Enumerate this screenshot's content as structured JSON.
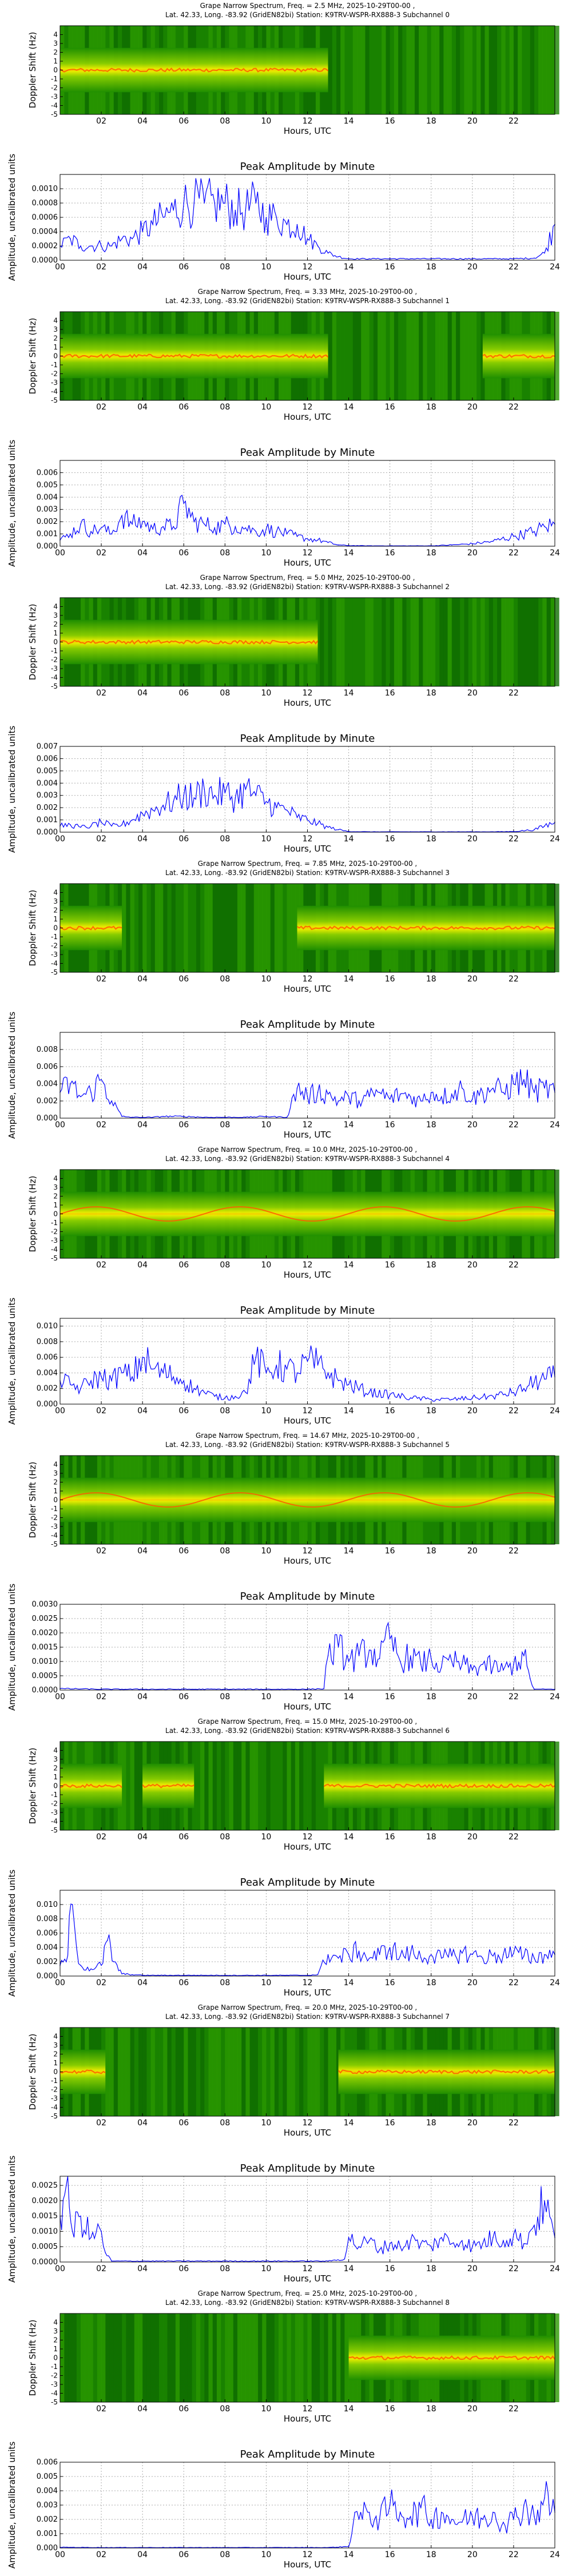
{
  "page": {
    "spectrogram_xlabel": "Hours, UTC",
    "spectrogram_ylabel": "Doppler Shift (Hz)",
    "amplitude_title": "Peak Amplitude by Minute",
    "amplitude_xlabel": "Hours, UTC",
    "amplitude_ylabel": "Amplitude, uncalibrated units",
    "spectrogram_xticks": [
      "02",
      "04",
      "06",
      "08",
      "10",
      "12",
      "14",
      "16",
      "18",
      "20",
      "22"
    ],
    "spectrogram_yticks": [
      "4",
      "3",
      "2",
      "1",
      "0",
      "-1",
      "-2",
      "-3",
      "-4",
      "-5"
    ],
    "amplitude_xticks": [
      "00",
      "02",
      "04",
      "06",
      "08",
      "10",
      "12",
      "14",
      "16",
      "18",
      "20",
      "22",
      "24"
    ]
  },
  "chart_data": [
    {
      "type": "heatmap",
      "title_line1": "Grape Narrow Spectrum, Freq. = 2.5 MHz, 2025-10-29T00-00 ,",
      "title_line2": "Lat. 42.33, Long. -83.92 (GridEN82bi) Station: K9TRV-WSPR-RX888-3 Subchannel 0",
      "xlabel": "Hours, UTC",
      "ylabel": "Doppler Shift (Hz)",
      "xlim": [
        0,
        24
      ],
      "ylim": [
        -5,
        5
      ],
      "strong_hours": [
        [
          0,
          13
        ]
      ],
      "trace_shape": "flat"
    },
    {
      "type": "line",
      "title": "Peak Amplitude by Minute",
      "xlabel": "Hours, UTC",
      "ylabel": "Amplitude, uncalibrated units",
      "xlim": [
        0,
        24
      ],
      "ylim": [
        0,
        0.0012
      ],
      "grid": true,
      "yticks": [
        "0.0000",
        "0.0002",
        "0.0004",
        "0.0006",
        "0.0008",
        "0.0010"
      ],
      "x": [
        0,
        0.5,
        1,
        1.5,
        2,
        2.5,
        3,
        3.5,
        4,
        4.5,
        5,
        5.5,
        6,
        6.5,
        7,
        7.5,
        8,
        8.5,
        9,
        9.5,
        10,
        10.5,
        11,
        11.5,
        12,
        12.5,
        13,
        13.5,
        14,
        15,
        16,
        17,
        18,
        19,
        20,
        21,
        22,
        23,
        23.5,
        24
      ],
      "values": [
        0.0002,
        0.0003,
        0.0002,
        0.0002,
        0.0002,
        0.0002,
        0.0003,
        0.0003,
        0.0004,
        0.0005,
        0.0006,
        0.0007,
        0.0008,
        0.0008,
        0.0008,
        0.0008,
        0.0008,
        0.0007,
        0.0007,
        0.0008,
        0.0006,
        0.0006,
        0.0005,
        0.0005,
        0.0003,
        0.0002,
        0.0001,
        5e-05,
        2e-05,
        2e-05,
        2e-05,
        2e-05,
        2e-05,
        2e-05,
        2e-05,
        2e-05,
        2e-05,
        3e-05,
        0.0001,
        0.0005
      ]
    },
    {
      "type": "heatmap",
      "title_line1": "Grape Narrow Spectrum, Freq. = 3.33 MHz, 2025-10-29T00-00 ,",
      "title_line2": "Lat. 42.33, Long. -83.92 (GridEN82bi) Station: K9TRV-WSPR-RX888-3 Subchannel 1",
      "xlabel": "Hours, UTC",
      "ylabel": "Doppler Shift (Hz)",
      "xlim": [
        0,
        24
      ],
      "ylim": [
        -5,
        5
      ],
      "strong_hours": [
        [
          0,
          13
        ],
        [
          20.5,
          24
        ]
      ],
      "trace_shape": "flat"
    },
    {
      "type": "line",
      "title": "Peak Amplitude by Minute",
      "xlabel": "Hours, UTC",
      "ylabel": "Amplitude, uncalibrated units",
      "xlim": [
        0,
        24
      ],
      "ylim": [
        0,
        0.007
      ],
      "grid": true,
      "yticks": [
        "0.000",
        "0.001",
        "0.002",
        "0.003",
        "0.004",
        "0.005",
        "0.006"
      ],
      "x": [
        0,
        0.5,
        1,
        1.5,
        2,
        2.5,
        3,
        3.5,
        4,
        4.5,
        5,
        5.5,
        6,
        6.5,
        7,
        7.5,
        8,
        8.5,
        9,
        9.5,
        10,
        10.5,
        11,
        11.5,
        12,
        12.5,
        13,
        13.5,
        14,
        15,
        16,
        17,
        18,
        19,
        20,
        21,
        22,
        23,
        23.5,
        24
      ],
      "values": [
        0.0005,
        0.001,
        0.0018,
        0.0012,
        0.0015,
        0.001,
        0.0025,
        0.0018,
        0.002,
        0.0014,
        0.0016,
        0.0016,
        0.0035,
        0.002,
        0.0018,
        0.0015,
        0.0018,
        0.0016,
        0.0015,
        0.0012,
        0.0014,
        0.0012,
        0.001,
        0.0008,
        0.0006,
        0.0005,
        0.0003,
        0.0001,
        5e-05,
        3e-05,
        3e-05,
        3e-05,
        3e-05,
        0.0001,
        0.0002,
        0.0004,
        0.0008,
        0.0012,
        0.0016,
        0.0018
      ]
    },
    {
      "type": "heatmap",
      "title_line1": "Grape Narrow Spectrum, Freq. = 5.0 MHz, 2025-10-29T00-00 ,",
      "title_line2": "Lat. 42.33, Long. -83.92 (GridEN82bi) Station: K9TRV-WSPR-RX888-3 Subchannel 2",
      "xlabel": "Hours, UTC",
      "ylabel": "Doppler Shift (Hz)",
      "xlim": [
        0,
        24
      ],
      "ylim": [
        -5,
        5
      ],
      "strong_hours": [
        [
          0,
          12.5
        ]
      ],
      "trace_shape": "flat"
    },
    {
      "type": "line",
      "title": "Peak Amplitude by Minute",
      "xlabel": "Hours, UTC",
      "ylabel": "Amplitude, uncalibrated units",
      "xlim": [
        0,
        24
      ],
      "ylim": [
        0,
        0.007
      ],
      "grid": true,
      "yticks": [
        "0.000",
        "0.001",
        "0.002",
        "0.003",
        "0.004",
        "0.005",
        "0.006",
        "0.007"
      ],
      "x": [
        0,
        0.5,
        1,
        1.5,
        2,
        2.5,
        3,
        3.5,
        4,
        4.5,
        5,
        5.5,
        6,
        6.5,
        7,
        7.5,
        8,
        8.5,
        9,
        9.5,
        10,
        10.5,
        11,
        11.5,
        12,
        12.5,
        13,
        13.5,
        14,
        15,
        16,
        17,
        18,
        19,
        20,
        21,
        22,
        23,
        23.5,
        24
      ],
      "values": [
        0.0005,
        0.0006,
        0.0004,
        0.0005,
        0.0008,
        0.0005,
        0.0006,
        0.001,
        0.0015,
        0.0018,
        0.0022,
        0.0025,
        0.003,
        0.0028,
        0.0035,
        0.003,
        0.0032,
        0.0028,
        0.0035,
        0.003,
        0.0025,
        0.002,
        0.0018,
        0.0012,
        0.001,
        0.0007,
        0.0004,
        0.0002,
        5e-05,
        3e-05,
        3e-05,
        3e-05,
        3e-05,
        3e-05,
        3e-05,
        3e-05,
        5e-05,
        0.0002,
        0.0005,
        0.0008
      ]
    },
    {
      "type": "heatmap",
      "title_line1": "Grape Narrow Spectrum, Freq. = 7.85 MHz, 2025-10-29T00-00 ,",
      "title_line2": "Lat. 42.33, Long. -83.92 (GridEN82bi) Station: K9TRV-WSPR-RX888-3 Subchannel 3",
      "xlabel": "Hours, UTC",
      "ylabel": "Doppler Shift (Hz)",
      "xlim": [
        0,
        24
      ],
      "ylim": [
        -5,
        5
      ],
      "strong_hours": [
        [
          0,
          3
        ],
        [
          11.5,
          24
        ]
      ],
      "trace_shape": "flat"
    },
    {
      "type": "line",
      "title": "Peak Amplitude by Minute",
      "xlabel": "Hours, UTC",
      "ylabel": "Amplitude, uncalibrated units",
      "xlim": [
        0,
        24
      ],
      "ylim": [
        0,
        0.01
      ],
      "grid": true,
      "yticks": [
        "0.000",
        "0.002",
        "0.004",
        "0.006",
        "0.008"
      ],
      "x": [
        0,
        0.5,
        1,
        1.5,
        2,
        2.5,
        3,
        3.5,
        4,
        4.5,
        5,
        6,
        7,
        8,
        9,
        10,
        11,
        11.5,
        12,
        12.5,
        13,
        13.5,
        14,
        14.5,
        15,
        15.5,
        16,
        16.5,
        17,
        17.5,
        18,
        18.5,
        19,
        19.5,
        20,
        20.5,
        21,
        21.5,
        22,
        22.5,
        23,
        23.5,
        24
      ],
      "values": [
        0.003,
        0.004,
        0.0025,
        0.003,
        0.0045,
        0.002,
        0.0002,
        0.0001,
        0.0001,
        0.0001,
        0.0002,
        0.0002,
        0.0001,
        0.0001,
        0.0001,
        0.0002,
        0.0001,
        0.0035,
        0.0025,
        0.003,
        0.0028,
        0.002,
        0.0025,
        0.002,
        0.0025,
        0.003,
        0.0022,
        0.0028,
        0.0025,
        0.002,
        0.003,
        0.0025,
        0.0028,
        0.0035,
        0.0022,
        0.003,
        0.0035,
        0.003,
        0.004,
        0.0045,
        0.003,
        0.0035,
        0.003
      ]
    },
    {
      "type": "heatmap",
      "title_line1": "Grape Narrow Spectrum, Freq. = 10.0 MHz, 2025-10-29T00-00 ,",
      "title_line2": "Lat. 42.33, Long. -83.92 (GridEN82bi) Station: K9TRV-WSPR-RX888-3 Subchannel 4",
      "xlabel": "Hours, UTC",
      "ylabel": "Doppler Shift (Hz)",
      "xlim": [
        0,
        24
      ],
      "ylim": [
        -5,
        5
      ],
      "strong_hours": [
        [
          0,
          24
        ]
      ],
      "trace_shape": "wavy"
    },
    {
      "type": "line",
      "title": "Peak Amplitude by Minute",
      "xlabel": "Hours, UTC",
      "ylabel": "Amplitude, uncalibrated units",
      "xlim": [
        0,
        24
      ],
      "ylim": [
        0,
        0.011
      ],
      "grid": true,
      "yticks": [
        "0.000",
        "0.002",
        "0.004",
        "0.006",
        "0.008",
        "0.010"
      ],
      "x": [
        0,
        0.5,
        1,
        1.5,
        2,
        2.5,
        3,
        3.5,
        4,
        4.5,
        5,
        5.5,
        6,
        6.5,
        7,
        7.5,
        8,
        8.5,
        9,
        9.5,
        10,
        10.5,
        11,
        11.5,
        12,
        12.5,
        13,
        13.5,
        14,
        15,
        16,
        17,
        18,
        19,
        20,
        21,
        22,
        22.5,
        23,
        23.5,
        24
      ],
      "values": [
        0.003,
        0.0025,
        0.002,
        0.003,
        0.0035,
        0.003,
        0.004,
        0.0035,
        0.006,
        0.0045,
        0.004,
        0.0035,
        0.003,
        0.002,
        0.0015,
        0.001,
        0.0008,
        0.001,
        0.0015,
        0.006,
        0.004,
        0.005,
        0.0045,
        0.004,
        0.0055,
        0.005,
        0.004,
        0.003,
        0.0025,
        0.0015,
        0.0012,
        0.0008,
        0.0006,
        0.0006,
        0.0008,
        0.001,
        0.0015,
        0.002,
        0.0028,
        0.0032,
        0.0035
      ]
    },
    {
      "type": "heatmap",
      "title_line1": "Grape Narrow Spectrum, Freq. = 14.67 MHz, 2025-10-29T00-00 ,",
      "title_line2": "Lat. 42.33, Long. -83.92 (GridEN82bi) Station: K9TRV-WSPR-RX888-3 Subchannel 5",
      "xlabel": "Hours, UTC",
      "ylabel": "Doppler Shift (Hz)",
      "xlim": [
        0,
        24
      ],
      "ylim": [
        -5,
        5
      ],
      "strong_hours": [
        [
          0,
          24
        ]
      ],
      "trace_shape": "wavy"
    },
    {
      "type": "line",
      "title": "Peak Amplitude by Minute",
      "xlabel": "Hours, UTC",
      "ylabel": "Amplitude, uncalibrated units",
      "xlim": [
        0,
        24
      ],
      "ylim": [
        0,
        0.003
      ],
      "grid": true,
      "yticks": [
        "0.0000",
        "0.0005",
        "0.0010",
        "0.0015",
        "0.0020",
        "0.0025",
        "0.0030"
      ],
      "x": [
        0,
        2,
        4,
        6,
        8,
        10,
        12,
        12.8,
        13,
        13.5,
        14,
        14.5,
        15,
        15.5,
        16,
        16.5,
        17,
        17.5,
        18,
        18.5,
        19,
        19.5,
        20,
        20.5,
        21,
        21.5,
        22,
        22.5,
        22.8,
        23,
        24
      ],
      "values": [
        5e-05,
        3e-05,
        3e-05,
        3e-05,
        3e-05,
        3e-05,
        3e-05,
        5e-05,
        0.0012,
        0.0015,
        0.001,
        0.0012,
        0.0014,
        0.0011,
        0.0018,
        0.001,
        0.0012,
        0.0009,
        0.0011,
        0.0008,
        0.001,
        0.0009,
        0.0007,
        0.0009,
        0.0008,
        0.0007,
        0.0009,
        0.0012,
        0.0004,
        3e-05,
        3e-05
      ]
    },
    {
      "type": "heatmap",
      "title_line1": "Grape Narrow Spectrum, Freq. = 15.0 MHz, 2025-10-29T00-00 ,",
      "title_line2": "Lat. 42.33, Long. -83.92 (GridEN82bi) Station: K9TRV-WSPR-RX888-3 Subchannel 6",
      "xlabel": "Hours, UTC",
      "ylabel": "Doppler Shift (Hz)",
      "xlim": [
        0,
        24
      ],
      "ylim": [
        -5,
        5
      ],
      "strong_hours": [
        [
          0,
          3
        ],
        [
          4,
          6.5
        ],
        [
          12.8,
          24
        ]
      ],
      "trace_shape": "flat"
    },
    {
      "type": "line",
      "title": "Peak Amplitude by Minute",
      "xlabel": "Hours, UTC",
      "ylabel": "Amplitude, uncalibrated units",
      "xlim": [
        0,
        24
      ],
      "ylim": [
        0,
        0.012
      ],
      "grid": true,
      "yticks": [
        "0.000",
        "0.002",
        "0.004",
        "0.006",
        "0.008",
        "0.010"
      ],
      "x": [
        0,
        0.3,
        0.6,
        0.8,
        1,
        1.5,
        2,
        2.3,
        2.6,
        3,
        3.5,
        4,
        6,
        8,
        10,
        12,
        12.5,
        13,
        13.5,
        14,
        14.5,
        15,
        15.5,
        16,
        16.5,
        17,
        17.5,
        18,
        18.5,
        19,
        19.5,
        20,
        20.5,
        21,
        21.5,
        22,
        22.5,
        23,
        23.5,
        24
      ],
      "values": [
        0.0015,
        0.002,
        0.01,
        0.004,
        0.0015,
        0.001,
        0.0015,
        0.005,
        0.002,
        0.0003,
        0.0002,
        0.0001,
        0.0001,
        0.0001,
        0.0001,
        0.0001,
        0.0002,
        0.003,
        0.0025,
        0.003,
        0.0035,
        0.0025,
        0.003,
        0.004,
        0.0028,
        0.0032,
        0.0026,
        0.003,
        0.0025,
        0.0028,
        0.0032,
        0.003,
        0.0025,
        0.0028,
        0.003,
        0.0032,
        0.0028,
        0.0025,
        0.003,
        0.003
      ]
    },
    {
      "type": "heatmap",
      "title_line1": "Grape Narrow Spectrum, Freq. = 20.0 MHz, 2025-10-29T00-00 ,",
      "title_line2": "Lat. 42.33, Long. -83.92 (GridEN82bi) Station: K9TRV-WSPR-RX888-3 Subchannel 7",
      "xlabel": "Hours, UTC",
      "ylabel": "Doppler Shift (Hz)",
      "xlim": [
        0,
        24
      ],
      "ylim": [
        -5,
        5
      ],
      "strong_hours": [
        [
          0,
          2.2
        ],
        [
          13.5,
          24
        ]
      ],
      "trace_shape": "flat"
    },
    {
      "type": "line",
      "title": "Peak Amplitude by Minute",
      "xlabel": "Hours, UTC",
      "ylabel": "Amplitude, uncalibrated units",
      "xlim": [
        0,
        24
      ],
      "ylim": [
        0,
        0.0028
      ],
      "grid": true,
      "yticks": [
        "0.0000",
        "0.0005",
        "0.0010",
        "0.0015",
        "0.0020",
        "0.0025"
      ],
      "x": [
        0,
        0.3,
        0.6,
        1,
        1.5,
        2,
        2.2,
        2.5,
        4,
        6,
        8,
        10,
        12,
        13,
        13.8,
        14,
        14.5,
        15,
        15.5,
        16,
        16.5,
        17,
        17.5,
        18,
        18.5,
        19,
        19.5,
        20,
        20.5,
        21,
        21.5,
        22,
        22.5,
        23,
        23.5,
        24
      ],
      "values": [
        0.0015,
        0.0025,
        0.001,
        0.0015,
        0.0008,
        0.001,
        0.0003,
        3e-05,
        3e-05,
        3e-05,
        3e-05,
        3e-05,
        3e-05,
        3e-05,
        0.0001,
        0.0008,
        0.0005,
        0.0007,
        0.0004,
        0.0006,
        0.0005,
        0.0007,
        0.0006,
        0.0005,
        0.0008,
        0.0006,
        0.0007,
        0.0005,
        0.0006,
        0.0008,
        0.0007,
        0.0009,
        0.0006,
        0.0012,
        0.002,
        0.0008
      ]
    },
    {
      "type": "heatmap",
      "title_line1": "Grape Narrow Spectrum, Freq. = 25.0 MHz, 2025-10-29T00-00 ,",
      "title_line2": "Lat. 42.33, Long. -83.92 (GridEN82bi) Station: K9TRV-WSPR-RX888-3 Subchannel 8",
      "xlabel": "Hours, UTC",
      "ylabel": "Doppler Shift (Hz)",
      "xlim": [
        0,
        24
      ],
      "ylim": [
        -5,
        5
      ],
      "strong_hours": [
        [
          14,
          24
        ]
      ],
      "trace_shape": "flat"
    },
    {
      "type": "line",
      "title": "Peak Amplitude by Minute",
      "xlabel": "Hours, UTC",
      "ylabel": "Amplitude, uncalibrated units",
      "xlim": [
        0,
        24
      ],
      "ylim": [
        0,
        0.006
      ],
      "grid": true,
      "yticks": [
        "0.000",
        "0.001",
        "0.002",
        "0.003",
        "0.004",
        "0.005",
        "0.006"
      ],
      "x": [
        0,
        2,
        4,
        6,
        8,
        10,
        12,
        13,
        14,
        14.3,
        14.5,
        15,
        15.5,
        16,
        16.5,
        17,
        17.5,
        18,
        18.5,
        19,
        19.5,
        20,
        20.5,
        21,
        21.5,
        22,
        22.5,
        23,
        23.5,
        24
      ],
      "values": [
        5e-05,
        3e-05,
        3e-05,
        3e-05,
        3e-05,
        3e-05,
        3e-05,
        3e-05,
        0.0001,
        0.0025,
        0.002,
        0.0025,
        0.002,
        0.003,
        0.0025,
        0.0022,
        0.0028,
        0.002,
        0.0025,
        0.002,
        0.0018,
        0.0022,
        0.002,
        0.0025,
        0.0018,
        0.002,
        0.003,
        0.0022,
        0.0035,
        0.0025
      ]
    }
  ]
}
